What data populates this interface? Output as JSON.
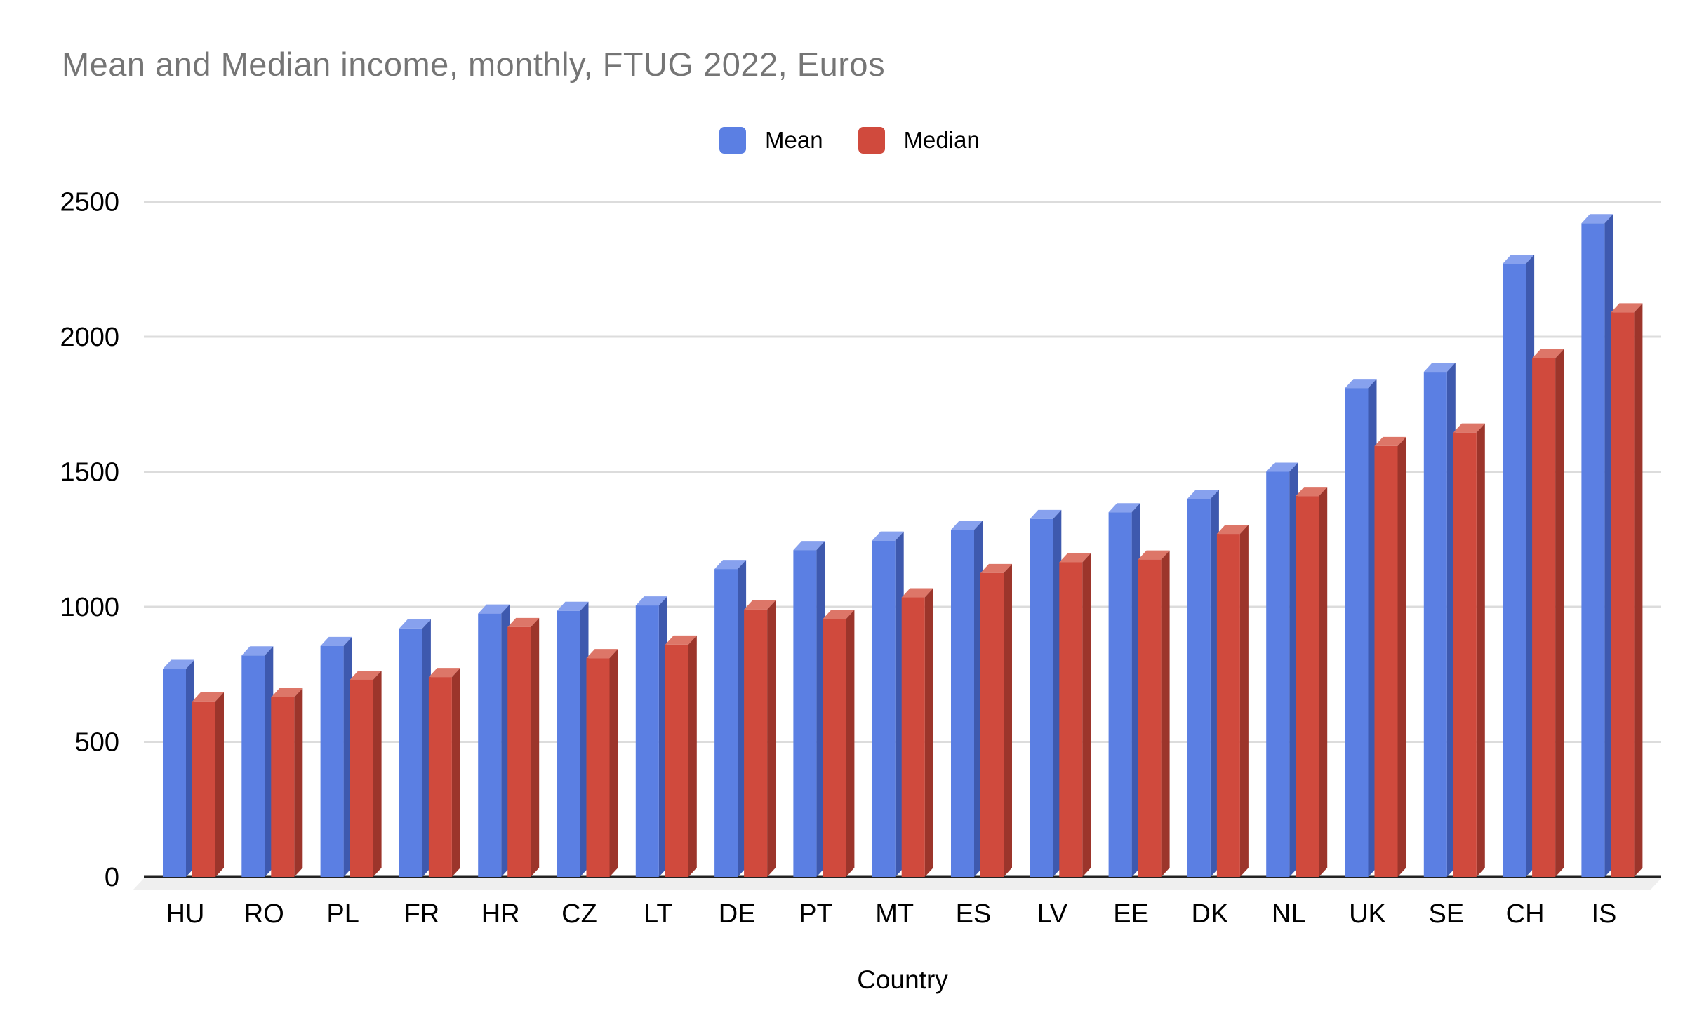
{
  "title": "Mean and Median income, monthly, FTUG 2022, Euros",
  "chart_data": {
    "type": "bar",
    "title": "Mean and Median income, monthly, FTUG 2022, Euros",
    "categories": [
      "HU",
      "RO",
      "PL",
      "FR",
      "HR",
      "CZ",
      "LT",
      "DE",
      "PT",
      "MT",
      "ES",
      "LV",
      "EE",
      "DK",
      "NL",
      "UK",
      "SE",
      "CH",
      "IS"
    ],
    "series": [
      {
        "name": "Mean",
        "color": "#5B7FE3",
        "top_color": "#87A1EE",
        "side_color": "#3E59AE",
        "values": [
          770,
          820,
          855,
          920,
          975,
          985,
          1005,
          1140,
          1210,
          1245,
          1285,
          1325,
          1350,
          1400,
          1500,
          1810,
          1870,
          2270,
          2420
        ]
      },
      {
        "name": "Median",
        "color": "#D04A3D",
        "top_color": "#DD7668",
        "side_color": "#9C352B",
        "values": [
          650,
          665,
          730,
          740,
          925,
          810,
          860,
          990,
          955,
          1035,
          1125,
          1165,
          1175,
          1270,
          1410,
          1595,
          1645,
          1920,
          2090
        ]
      }
    ],
    "xlabel": "Country",
    "ylabel": "",
    "ylim": [
      0,
      2500
    ],
    "y_ticks": [
      0,
      500,
      1000,
      1500,
      2000,
      2500
    ],
    "grid": true,
    "legend_position": "top",
    "unit": "Euros"
  },
  "colors": {
    "gridline": "#DCDCDC",
    "axis": "#222222",
    "floor": "#EFEFEF",
    "tick_text": "#000000",
    "title_text": "#757575"
  }
}
